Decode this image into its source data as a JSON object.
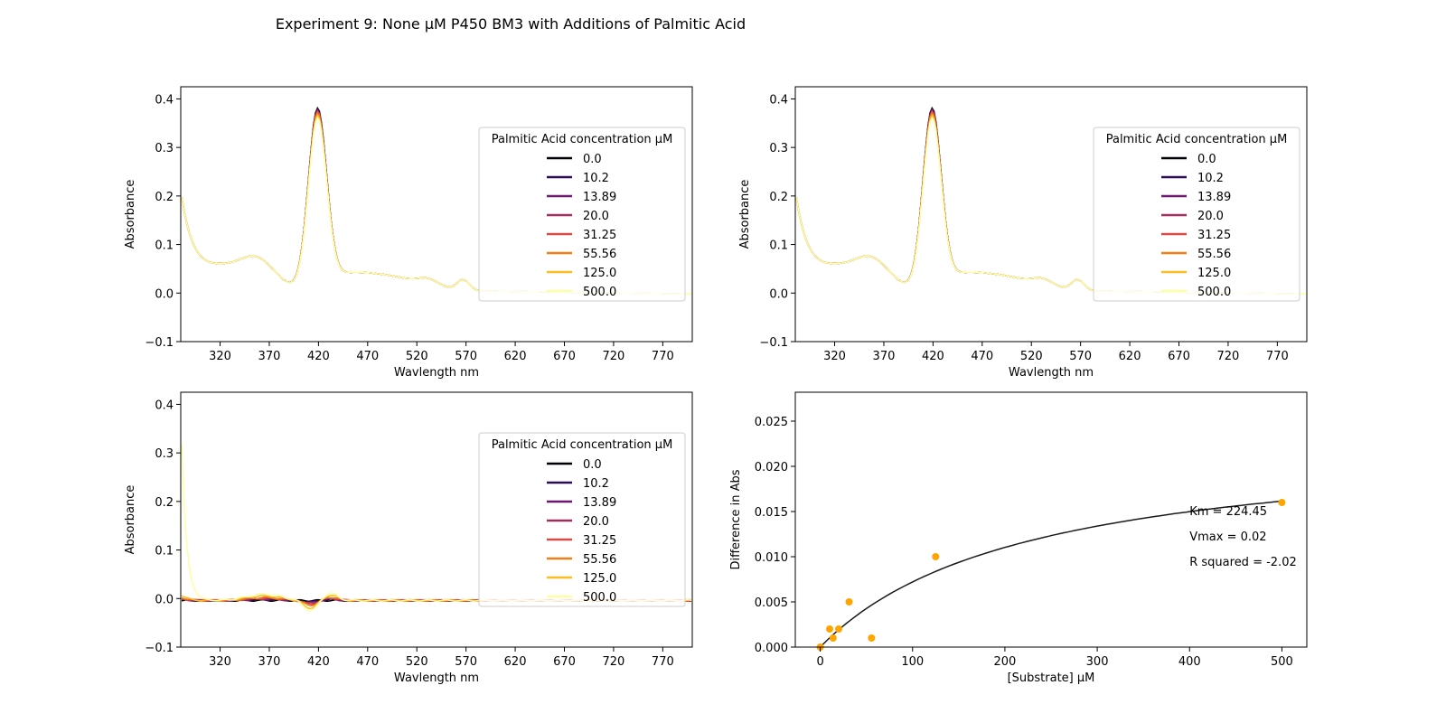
{
  "figure": {
    "title": "Experiment 9: None μM P450 BM3 with Additions of Palmitic Acid"
  },
  "colors": {
    "series": [
      "#000004",
      "#2d0b59",
      "#6b186e",
      "#a52c60",
      "#d84a43",
      "#f57d15",
      "#fbbe23",
      "#fcffa4"
    ],
    "fit_line": "#1a1a1a",
    "points": "#ffa500"
  },
  "chart_data": [
    {
      "type": "line",
      "name": "spectra",
      "xlabel": "Wavlength nm",
      "ylabel": "Absorbance",
      "xlim": [
        280,
        800
      ],
      "ylim": [
        -0.1,
        0.425
      ],
      "xticks": [
        320,
        370,
        420,
        470,
        520,
        570,
        620,
        670,
        720,
        770
      ],
      "yticks": [
        -0.1,
        0.0,
        0.1,
        0.2,
        0.3,
        0.4
      ],
      "grid": false,
      "legend": {
        "title": "Palmitic Acid concentration μM",
        "placement": "right",
        "entries": [
          "0.0",
          "10.2",
          "13.89",
          "20.0",
          "31.25",
          "55.56",
          "125.0",
          "500.0"
        ]
      },
      "series": [
        {
          "name": "0.0",
          "peak": 0.36
        },
        {
          "name": "10.2",
          "peak": 0.358
        },
        {
          "name": "13.89",
          "peak": 0.356
        },
        {
          "name": "20.0",
          "peak": 0.355
        },
        {
          "name": "31.25",
          "peak": 0.352
        },
        {
          "name": "55.56",
          "peak": 0.35
        },
        {
          "name": "125.0",
          "peak": 0.345
        },
        {
          "name": "500.0",
          "peak": 0.34
        }
      ]
    },
    {
      "type": "line",
      "name": "spectra-smoothed",
      "xlabel": "Wavlength nm",
      "ylabel": "Absorbance",
      "xlim": [
        280,
        800
      ],
      "ylim": [
        -0.1,
        0.425
      ],
      "xticks": [
        320,
        370,
        420,
        470,
        520,
        570,
        620,
        670,
        720,
        770
      ],
      "yticks": [
        -0.1,
        0.0,
        0.1,
        0.2,
        0.3,
        0.4
      ],
      "grid": false,
      "legend": {
        "title": "Palmitic Acid concentration μM",
        "placement": "right",
        "entries": [
          "0.0",
          "10.2",
          "13.89",
          "20.0",
          "31.25",
          "55.56",
          "125.0",
          "500.0"
        ]
      },
      "series": [
        {
          "name": "0.0",
          "peak": 0.36
        },
        {
          "name": "10.2",
          "peak": 0.358
        },
        {
          "name": "13.89",
          "peak": 0.356
        },
        {
          "name": "20.0",
          "peak": 0.355
        },
        {
          "name": "31.25",
          "peak": 0.352
        },
        {
          "name": "55.56",
          "peak": 0.35
        },
        {
          "name": "125.0",
          "peak": 0.345
        },
        {
          "name": "500.0",
          "peak": 0.34
        }
      ]
    },
    {
      "type": "line",
      "name": "difference-spectra",
      "xlabel": "Wavlength nm",
      "ylabel": "Absorbance",
      "xlim": [
        280,
        800
      ],
      "ylim": [
        -0.1,
        0.425
      ],
      "xticks": [
        320,
        370,
        420,
        470,
        520,
        570,
        620,
        670,
        720,
        770
      ],
      "yticks": [
        -0.1,
        0.0,
        0.1,
        0.2,
        0.3,
        0.4
      ],
      "grid": false,
      "legend": {
        "title": "Palmitic Acid concentration μM",
        "placement": "right",
        "entries": [
          "0.0",
          "10.2",
          "13.89",
          "20.0",
          "31.25",
          "55.56",
          "125.0",
          "500.0"
        ]
      },
      "series": [
        {
          "name": "0.0",
          "amplitude": 0.0
        },
        {
          "name": "10.2",
          "amplitude": 0.003
        },
        {
          "name": "13.89",
          "amplitude": 0.004
        },
        {
          "name": "20.0",
          "amplitude": 0.006
        },
        {
          "name": "31.25",
          "amplitude": 0.008
        },
        {
          "name": "55.56",
          "amplitude": 0.01
        },
        {
          "name": "125.0",
          "amplitude": 0.016
        },
        {
          "name": "500.0",
          "amplitude": 0.022
        }
      ]
    },
    {
      "type": "scatter",
      "name": "michaelis-menten",
      "xlabel": "[Substrate] μM",
      "ylabel": "Difference in Abs",
      "xlim": [
        -27,
        527
      ],
      "ylim": [
        0,
        0.0282
      ],
      "xticks": [
        0,
        100,
        200,
        300,
        400,
        500
      ],
      "yticks": [
        0.0,
        0.005,
        0.01,
        0.015,
        0.02,
        0.025
      ],
      "ytick_labels": [
        "0.000",
        "0.005",
        "0.010",
        "0.015",
        "0.020",
        "0.025"
      ],
      "grid": false,
      "points": [
        {
          "x": 0.0,
          "y": 0.0
        },
        {
          "x": 10.2,
          "y": 0.002
        },
        {
          "x": 13.89,
          "y": 0.001
        },
        {
          "x": 20.0,
          "y": 0.002
        },
        {
          "x": 31.25,
          "y": 0.005
        },
        {
          "x": 55.56,
          "y": 0.001
        },
        {
          "x": 125.0,
          "y": 0.01
        },
        {
          "x": 500.0,
          "y": 0.016
        }
      ],
      "fit": {
        "km": 224.45,
        "vmax": 0.0234,
        "x_range": [
          0,
          500
        ]
      },
      "annotations": [
        "Km = 224.45",
        "Vmax = 0.02",
        "R squared = -2.02"
      ]
    }
  ]
}
